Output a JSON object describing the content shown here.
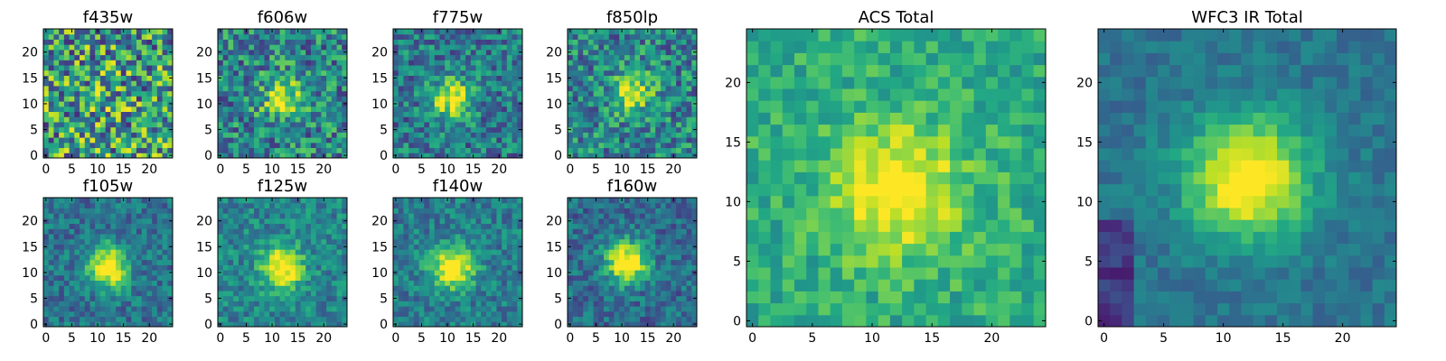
{
  "figure": {
    "colormap": "viridis",
    "colormap_stops": [
      "#440154",
      "#482475",
      "#414487",
      "#355f8d",
      "#2a788e",
      "#21918c",
      "#22a884",
      "#44bf70",
      "#7ad151",
      "#bddf26",
      "#fde725"
    ]
  },
  "chart_data": [
    {
      "type": "heatmap",
      "title": "f435w",
      "x_ticks": [
        "0",
        "5",
        "10",
        "15",
        "20"
      ],
      "y_ticks": [
        "0",
        "5",
        "10",
        "15",
        "20"
      ],
      "xlim": [
        -0.5,
        24.5
      ],
      "ylim": [
        -0.5,
        24.5
      ],
      "grid": false,
      "source_region": "no clear central source",
      "noise_level": 0.85,
      "value_center": 0.55,
      "peak": {
        "x": 12,
        "y": 11
      },
      "peak_strength": 0.05
    },
    {
      "type": "heatmap",
      "title": "f606w",
      "x_ticks": [
        "0",
        "5",
        "10",
        "15",
        "20"
      ],
      "y_ticks": [
        "0",
        "5",
        "10",
        "15",
        "20"
      ],
      "xlim": [
        -0.5,
        24.5
      ],
      "ylim": [
        -0.5,
        24.5
      ],
      "grid": false,
      "noise_level": 0.6,
      "value_center": 0.45,
      "peak": {
        "x": 12,
        "y": 11
      },
      "peak_strength": 0.35
    },
    {
      "type": "heatmap",
      "title": "f775w",
      "x_ticks": [
        "0",
        "5",
        "10",
        "15",
        "20"
      ],
      "y_ticks": [
        "0",
        "5",
        "10",
        "15",
        "20"
      ],
      "xlim": [
        -0.5,
        24.5
      ],
      "ylim": [
        -0.5,
        24.5
      ],
      "grid": false,
      "noise_level": 0.5,
      "value_center": 0.4,
      "peak": {
        "x": 11,
        "y": 11
      },
      "peak_strength": 0.5
    },
    {
      "type": "heatmap",
      "title": "f850lp",
      "x_ticks": [
        "0",
        "5",
        "10",
        "15",
        "20"
      ],
      "y_ticks": [
        "0",
        "5",
        "10",
        "15",
        "20"
      ],
      "xlim": [
        -0.5,
        24.5
      ],
      "ylim": [
        -0.5,
        24.5
      ],
      "grid": false,
      "noise_level": 0.55,
      "value_center": 0.45,
      "peak": {
        "x": 12,
        "y": 12
      },
      "peak_strength": 0.4
    },
    {
      "type": "heatmap",
      "title": "f105w",
      "x_ticks": [
        "0",
        "5",
        "10",
        "15",
        "20"
      ],
      "y_ticks": [
        "0",
        "5",
        "10",
        "15",
        "20"
      ],
      "xlim": [
        -0.5,
        24.5
      ],
      "ylim": [
        -0.5,
        24.5
      ],
      "grid": false,
      "noise_level": 0.35,
      "value_center": 0.38,
      "peak": {
        "x": 12,
        "y": 11
      },
      "peak_strength": 0.6
    },
    {
      "type": "heatmap",
      "title": "f125w",
      "x_ticks": [
        "0",
        "5",
        "10",
        "15",
        "20"
      ],
      "y_ticks": [
        "0",
        "5",
        "10",
        "15",
        "20"
      ],
      "xlim": [
        -0.5,
        24.5
      ],
      "ylim": [
        -0.5,
        24.5
      ],
      "grid": false,
      "noise_level": 0.35,
      "value_center": 0.45,
      "peak": {
        "x": 12,
        "y": 11
      },
      "peak_strength": 0.55
    },
    {
      "type": "heatmap",
      "title": "f140w",
      "x_ticks": [
        "0",
        "5",
        "10",
        "15",
        "20"
      ],
      "y_ticks": [
        "0",
        "5",
        "10",
        "15",
        "20"
      ],
      "xlim": [
        -0.5,
        24.5
      ],
      "ylim": [
        -0.5,
        24.5
      ],
      "grid": false,
      "noise_level": 0.35,
      "value_center": 0.42,
      "peak": {
        "x": 11,
        "y": 11
      },
      "peak_strength": 0.6
    },
    {
      "type": "heatmap",
      "title": "f160w",
      "x_ticks": [
        "0",
        "5",
        "10",
        "15",
        "20"
      ],
      "y_ticks": [
        "0",
        "5",
        "10",
        "15",
        "20"
      ],
      "xlim": [
        -0.5,
        24.5
      ],
      "ylim": [
        -0.5,
        24.5
      ],
      "grid": false,
      "noise_level": 0.35,
      "value_center": 0.35,
      "peak": {
        "x": 11,
        "y": 12
      },
      "peak_strength": 0.65
    },
    {
      "type": "heatmap",
      "title": "ACS Total",
      "x_ticks": [
        "0",
        "5",
        "10",
        "15",
        "20"
      ],
      "y_ticks": [
        "0",
        "5",
        "10",
        "15",
        "20"
      ],
      "xlim": [
        -0.5,
        24.5
      ],
      "ylim": [
        -0.5,
        24.5
      ],
      "grid": false,
      "noise_level": 0.3,
      "value_center": 0.62,
      "peak": {
        "x": 12,
        "y": 11
      },
      "peak_strength": 0.4
    },
    {
      "type": "heatmap",
      "title": "WFC3 IR Total",
      "x_ticks": [
        "0",
        "5",
        "10",
        "15",
        "20"
      ],
      "y_ticks": [
        "0",
        "5",
        "10",
        "15",
        "20"
      ],
      "xlim": [
        -0.5,
        24.5
      ],
      "ylim": [
        -0.5,
        24.5
      ],
      "grid": false,
      "noise_level": 0.18,
      "value_center": 0.38,
      "peak": {
        "x": 12,
        "y": 12
      },
      "peak_strength": 0.6
    }
  ]
}
